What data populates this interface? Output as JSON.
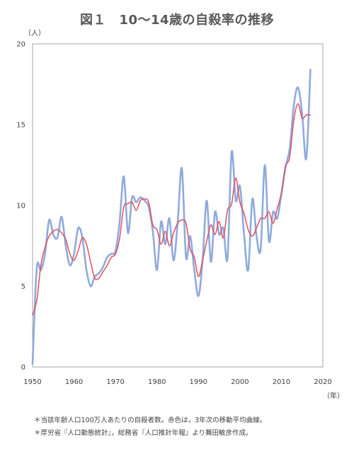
{
  "chart_data": {
    "type": "line",
    "title": "図１　10～14歳の自殺率の推移",
    "ylabel": "（人）",
    "xlabel": "（年）",
    "xlim": [
      1950,
      2020
    ],
    "ylim": [
      0,
      20
    ],
    "x_ticks": [
      1950,
      1960,
      1970,
      1980,
      1990,
      2000,
      2010,
      2020
    ],
    "y_ticks": [
      0,
      5,
      10,
      15,
      20
    ],
    "grid": false,
    "legend": "none",
    "colors": {
      "raw": "#8faadc",
      "smoothed": "#e05060",
      "axis": "#a6a6a6"
    },
    "series": [
      {
        "key": "raw",
        "x": [
          1950,
          1951,
          1952,
          1953,
          1954,
          1955,
          1956,
          1957,
          1958,
          1959,
          1960,
          1961,
          1962,
          1963,
          1964,
          1965,
          1966,
          1967,
          1968,
          1969,
          1970,
          1971,
          1972,
          1973,
          1974,
          1975,
          1976,
          1977,
          1978,
          1979,
          1980,
          1981,
          1982,
          1983,
          1984,
          1985,
          1986,
          1987,
          1988,
          1989,
          1990,
          1991,
          1992,
          1993,
          1994,
          1995,
          1996,
          1997,
          1998,
          1999,
          2000,
          2001,
          2002,
          2003,
          2004,
          2005,
          2006,
          2007,
          2008,
          2009,
          2010,
          2011,
          2012,
          2013,
          2014,
          2015,
          2016,
          2017
        ],
        "values": [
          0.2,
          6.1,
          6.0,
          7.0,
          9.1,
          8.2,
          8.0,
          9.3,
          7.5,
          6.3,
          7.0,
          8.6,
          8.0,
          6.0,
          5.0,
          5.6,
          5.8,
          6.2,
          6.8,
          7.0,
          7.2,
          9.0,
          11.8,
          8.3,
          10.5,
          10.2,
          10.5,
          10.3,
          9.9,
          8.4,
          6.0,
          9.0,
          7.6,
          9.2,
          6.6,
          9.0,
          12.3,
          6.8,
          8.1,
          6.0,
          4.4,
          6.6,
          10.3,
          6.5,
          9.6,
          8.2,
          8.6,
          6.7,
          13.3,
          10.3,
          11.2,
          8.2,
          6.0,
          10.4,
          8.1,
          7.3,
          12.5,
          7.8,
          9.6,
          9.2,
          10.7,
          12.4,
          13.5,
          16.2,
          17.3,
          15.7,
          12.9,
          18.4
        ]
      },
      {
        "key": "smoothed",
        "x": [
          1950,
          1951,
          1952,
          1953,
          1954,
          1955,
          1956,
          1957,
          1958,
          1959,
          1960,
          1961,
          1962,
          1963,
          1964,
          1965,
          1966,
          1967,
          1968,
          1969,
          1970,
          1971,
          1972,
          1973,
          1974,
          1975,
          1976,
          1977,
          1978,
          1979,
          1980,
          1981,
          1982,
          1983,
          1984,
          1985,
          1986,
          1987,
          1988,
          1989,
          1990,
          1991,
          1992,
          1993,
          1994,
          1995,
          1996,
          1997,
          1998,
          1999,
          2000,
          2001,
          2002,
          2003,
          2004,
          2005,
          2006,
          2007,
          2008,
          2009,
          2010,
          2011,
          2012,
          2013,
          2014,
          2015,
          2016,
          2017
        ],
        "values": [
          3.2,
          4.1,
          6.3,
          7.4,
          8.1,
          8.4,
          8.5,
          8.3,
          7.9,
          7.0,
          6.6,
          7.2,
          8.0,
          7.6,
          6.5,
          5.5,
          5.5,
          5.9,
          6.3,
          6.8,
          7.0,
          8.0,
          9.9,
          10.1,
          10.2,
          9.7,
          10.3,
          10.4,
          10.2,
          8.8,
          8.5,
          7.6,
          8.4,
          7.5,
          8.3,
          8.9,
          9.1,
          8.9,
          7.3,
          6.8,
          5.6,
          6.6,
          7.8,
          8.8,
          8.2,
          9.0,
          8.0,
          9.7,
          10.1,
          11.7,
          10.2,
          9.5,
          8.5,
          8.1,
          8.6,
          9.2,
          9.2,
          9.6,
          8.9,
          9.8,
          10.8,
          12.4,
          13.0,
          15.3,
          16.3,
          15.4,
          15.6,
          15.6
        ]
      }
    ]
  },
  "notes": [
    "＊当該年齢人口100万人あたりの自殺者数。赤色は，3年次の移動平均曲線。",
    "＊厚労省『人口動態統計』，総務省『人口推計年報』より舞田敏彦作成。"
  ]
}
